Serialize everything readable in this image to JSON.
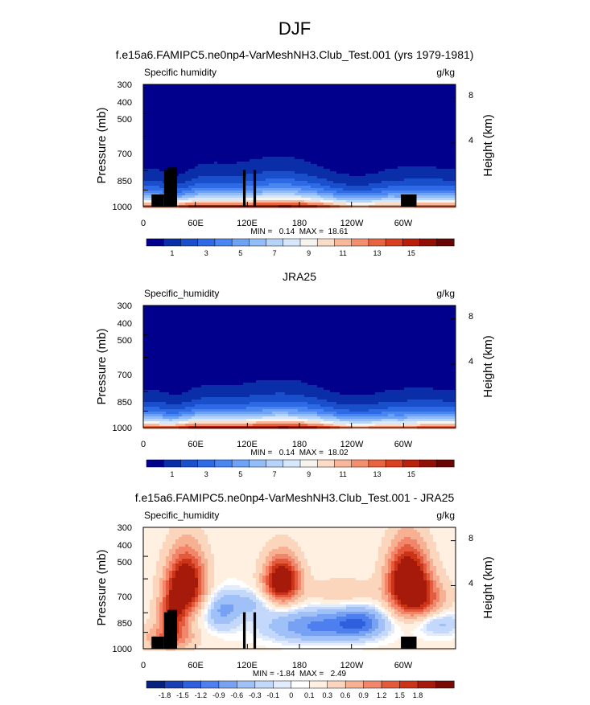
{
  "page_title": "DJF",
  "colors": {
    "abs_levels": [
      "#00008c",
      "#0a2ea8",
      "#1a4fcc",
      "#2e6ae6",
      "#4a86f2",
      "#6ea2f6",
      "#92bdf8",
      "#b6d4fa",
      "#d6e6fb",
      "#f6f4ee",
      "#fbdcc6",
      "#f8b79a",
      "#f38f6e",
      "#e8643f",
      "#d9401f",
      "#b8200d",
      "#901008",
      "#6a0404"
    ],
    "diff_levels": [
      "#07217e",
      "#1b3fb4",
      "#2e5fdc",
      "#4d80ee",
      "#77a2f4",
      "#a0c0f8",
      "#c4d8fb",
      "#e2ecfc",
      "#ffffff",
      "#fff0e2",
      "#fcd6bc",
      "#f8b092",
      "#f2866a",
      "#e45a3c",
      "#cc3418",
      "#a51a0a",
      "#7a0a04"
    ],
    "terrain": "#000000"
  },
  "colorbars": {
    "abs_labels": [
      "1",
      "3",
      "5",
      "7",
      "9",
      "11",
      "13",
      "15"
    ],
    "diff_labels": [
      "-1.8",
      "-1.5",
      "-1.2",
      "-0.9",
      "-0.6",
      "-0.3",
      "-0.1",
      "0",
      "0.1",
      "0.3",
      "0.6",
      "0.9",
      "1.2",
      "1.5",
      "1.8"
    ]
  },
  "chart_data": [
    {
      "type": "heatmap",
      "title": "f.e15a6.FAMIPC5.ne0np4-VarMeshNH3.Club_Test.001 (yrs 1979-1981)",
      "left_label": "Specific humidity",
      "units": "g/kg",
      "ylabel": "Pressure (mb)",
      "y2label": "Height (km)",
      "x_ticks": [
        "0",
        "60E",
        "120E",
        "180",
        "120W",
        "60W"
      ],
      "y_ticks": [
        "300",
        "400",
        "500",
        "700",
        "850",
        "1000"
      ],
      "y2_ticks": [
        "8",
        "4"
      ],
      "stats": "MIN =   0.14  MAX =  18.61",
      "min": 0.14,
      "max": 18.61
    },
    {
      "type": "heatmap",
      "title": "JRA25",
      "left_label": "Specific_humidity",
      "units": "g/kg",
      "ylabel": "Pressure (mb)",
      "y2label": "Height (km)",
      "x_ticks": [
        "0",
        "60E",
        "120E",
        "180",
        "120W",
        "60W"
      ],
      "y_ticks": [
        "300",
        "400",
        "500",
        "700",
        "850",
        "1000"
      ],
      "y2_ticks": [
        "8",
        "4"
      ],
      "stats": "MIN =   0.14  MAX =  18.02",
      "min": 0.14,
      "max": 18.02
    },
    {
      "type": "heatmap",
      "title": "f.e15a6.FAMIPC5.ne0np4-VarMeshNH3.Club_Test.001 - JRA25",
      "left_label": "Specific_humidity",
      "units": "g/kg",
      "ylabel": "Pressure (mb)",
      "y2label": "Height (km)",
      "x_ticks": [
        "0",
        "60E",
        "120E",
        "180",
        "120W",
        "60W"
      ],
      "y_ticks": [
        "300",
        "400",
        "500",
        "700",
        "850",
        "1000"
      ],
      "y2_ticks": [
        "8",
        "4"
      ],
      "stats": "MIN = -1.84  MAX =   2.49",
      "min": -1.84,
      "max": 2.49
    }
  ]
}
